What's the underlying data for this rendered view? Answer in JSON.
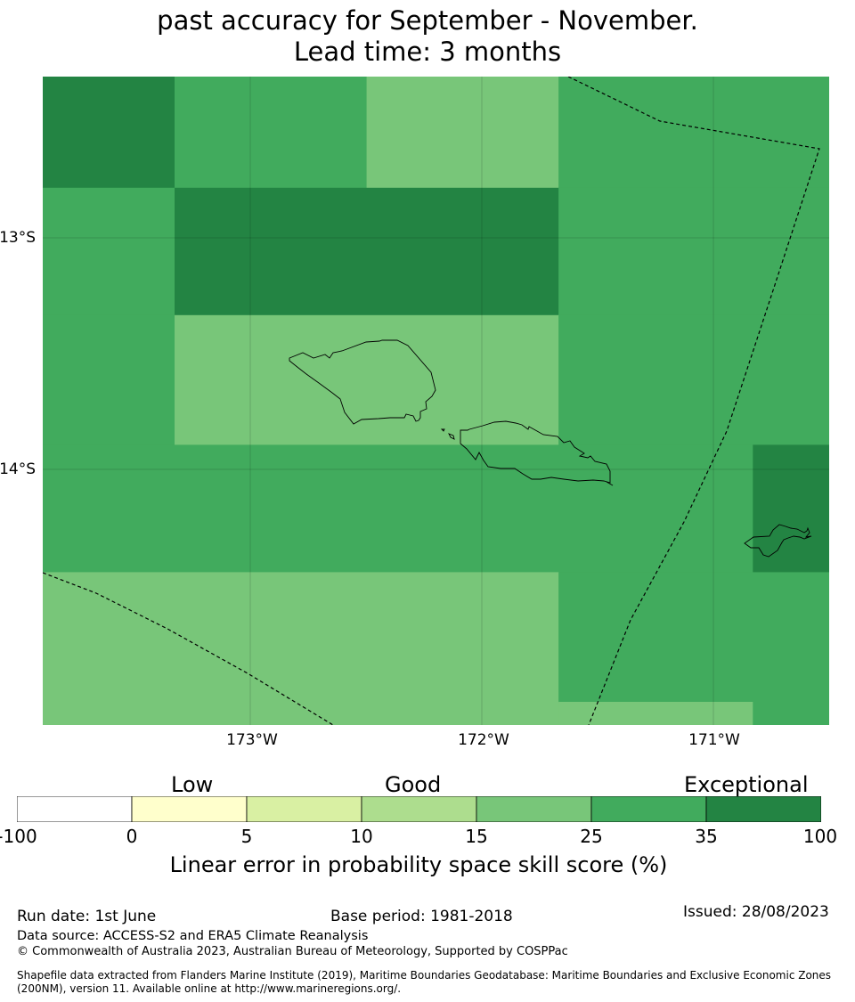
{
  "title": {
    "line1": "past accuracy for September - November.",
    "line2": "Lead time: 3 months"
  },
  "map": {
    "lon_range": [
      -173.9,
      -170.5
    ],
    "lat_range": [
      -15.1,
      -12.3
    ],
    "latitude_labels": [
      "13°S",
      "14°S"
    ],
    "longitude_labels": [
      "173°W",
      "172°W",
      "171°W"
    ],
    "grid_cell_skill_class": [
      {
        "lon": [
          -173.9,
          -173.33
        ],
        "lat": [
          -12.3,
          -12.78
        ],
        "class": "35-100"
      },
      {
        "lon": [
          -173.33,
          -172.5
        ],
        "lat": [
          -12.3,
          -12.78
        ],
        "class": "25-35"
      },
      {
        "lon": [
          -172.5,
          -171.67
        ],
        "lat": [
          -12.3,
          -12.78
        ],
        "class": "15-25"
      },
      {
        "lon": [
          -171.67,
          -170.5
        ],
        "lat": [
          -12.3,
          -12.78
        ],
        "class": "25-35"
      },
      {
        "lon": [
          -173.9,
          -173.33
        ],
        "lat": [
          -12.78,
          -13.33
        ],
        "class": "25-35"
      },
      {
        "lon": [
          -173.33,
          -171.67
        ],
        "lat": [
          -12.78,
          -13.33
        ],
        "class": "35-100"
      },
      {
        "lon": [
          -171.67,
          -170.5
        ],
        "lat": [
          -12.78,
          -13.33
        ],
        "class": "25-35"
      },
      {
        "lon": [
          -173.9,
          -173.33
        ],
        "lat": [
          -13.33,
          -13.89
        ],
        "class": "25-35"
      },
      {
        "lon": [
          -173.33,
          -171.67
        ],
        "lat": [
          -13.33,
          -13.89
        ],
        "class": "15-25"
      },
      {
        "lon": [
          -171.67,
          -170.5
        ],
        "lat": [
          -13.33,
          -13.89
        ],
        "class": "25-35"
      },
      {
        "lon": [
          -173.9,
          -170.83
        ],
        "lat": [
          -13.89,
          -14.44
        ],
        "class": "25-35"
      },
      {
        "lon": [
          -170.83,
          -170.5
        ],
        "lat": [
          -13.89,
          -14.44
        ],
        "class": "35-100"
      },
      {
        "lon": [
          -173.9,
          -171.67
        ],
        "lat": [
          -14.44,
          -15.1
        ],
        "class": "15-25"
      },
      {
        "lon": [
          -171.67,
          -170.5
        ],
        "lat": [
          -14.44,
          -15.0
        ],
        "class": "25-35"
      },
      {
        "lon": [
          -171.67,
          -170.83
        ],
        "lat": [
          -15.0,
          -15.1
        ],
        "class": "15-25"
      },
      {
        "lon": [
          -170.83,
          -170.5
        ],
        "lat": [
          -15.0,
          -15.1
        ],
        "class": "25-35"
      }
    ]
  },
  "legend": {
    "category_labels": [
      "Low",
      "Good",
      "Exceptional"
    ],
    "bins": [
      {
        "from": "-100",
        "to": "0",
        "color": "#ffffff"
      },
      {
        "from": "0",
        "to": "5",
        "color": "#ffffcc"
      },
      {
        "from": "5",
        "to": "10",
        "color": "#d9f0a3"
      },
      {
        "from": "10",
        "to": "15",
        "color": "#addd8e"
      },
      {
        "from": "15",
        "to": "25",
        "color": "#78c679"
      },
      {
        "from": "25",
        "to": "35",
        "color": "#41ab5d"
      },
      {
        "from": "35",
        "to": "100",
        "color": "#238443"
      }
    ],
    "tick_labels": [
      "-100",
      "0",
      "5",
      "10",
      "15",
      "25",
      "35",
      "100"
    ],
    "title": "Linear error in probability space skill score (%)"
  },
  "footer": {
    "run_date": "Run date: 1st June",
    "base_period": "Base period: 1981-2018",
    "issued": "Issued: 28/08/2023",
    "data_source": "Data source: ACCESS-S2 and ERA5 Climate Reanalysis",
    "copyright": "© Commonwealth of Australia 2023, Australian Bureau of Meteorology, Supported by COSPPac",
    "shapefile_line1": "Shapefile data extracted from Flanders Marine Institute (2019), Maritime Boundaries Geodatabase: Maritime Boundaries and Exclusive Economic Zones",
    "shapefile_line2": "(200NM), version 11. Available online at http://www.marineregions.org/."
  }
}
